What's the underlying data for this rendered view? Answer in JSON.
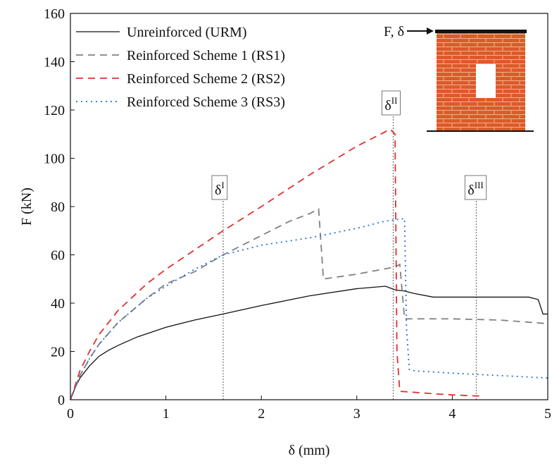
{
  "chart_data": {
    "type": "line",
    "xlabel": "δ (mm)",
    "ylabel": "F (kN)",
    "xlim": [
      0,
      5
    ],
    "xticks": [
      0,
      1,
      2,
      3,
      4,
      5
    ],
    "ylim": [
      0,
      160
    ],
    "yticks": [
      0,
      20,
      40,
      60,
      80,
      100,
      120,
      140,
      160
    ],
    "legend": "upper left",
    "series": [
      {
        "name": "Unreinforced (URM)",
        "color": "#111111",
        "dash": "solid",
        "x": [
          0,
          0.05,
          0.1,
          0.2,
          0.3,
          0.4,
          0.5,
          0.7,
          1,
          1.3,
          1.6,
          2,
          2.5,
          3,
          3.3,
          3.4,
          3.5,
          3.6,
          3.8,
          4,
          4.5,
          4.8,
          4.9,
          4.95,
          5
        ],
        "values": [
          0,
          5,
          9,
          14,
          18,
          20.5,
          22.5,
          26,
          30,
          33,
          35.5,
          39,
          43,
          46,
          47,
          45.5,
          45,
          44,
          42.5,
          42.5,
          42.5,
          42.5,
          41.5,
          35.5,
          35.5
        ]
      },
      {
        "name": "Reinforced Scheme 1 (RS1)",
        "color": "#808080",
        "dash": "dashed",
        "x": [
          0,
          0.1,
          0.2,
          0.3,
          0.5,
          0.8,
          1,
          1.3,
          1.6,
          2,
          2.3,
          2.5,
          2.6,
          2.65,
          3,
          3.4,
          3.45,
          3.5,
          4,
          4.5,
          5
        ],
        "values": [
          0,
          10,
          17,
          23,
          32,
          42,
          48,
          53,
          60,
          68,
          74,
          77,
          79,
          50,
          52,
          55,
          56,
          33.5,
          33.5,
          33,
          31.5
        ]
      },
      {
        "name": "Reinforced Scheme 2 (RS2)",
        "color": "#e03030",
        "dash": "dashed",
        "x": [
          0,
          0.1,
          0.2,
          0.3,
          0.5,
          0.8,
          1,
          1.3,
          1.6,
          2,
          2.5,
          3,
          3.35,
          3.4,
          3.42,
          3.45,
          3.8,
          4,
          4.3
        ],
        "values": [
          0,
          12,
          20,
          27,
          37,
          48,
          54,
          62,
          70,
          80,
          93,
          105,
          112,
          110,
          20,
          3.5,
          2.5,
          2,
          1.5
        ]
      },
      {
        "name": "Reinforced Scheme 3 (RS3)",
        "color": "#2a6fd6",
        "dash": "dotted",
        "x": [
          0,
          0.1,
          0.2,
          0.3,
          0.5,
          0.8,
          1,
          1.3,
          1.6,
          2,
          2.5,
          3,
          3.3,
          3.5,
          3.52,
          3.55,
          3.6,
          4,
          4.5,
          5
        ],
        "values": [
          0,
          10,
          17,
          23,
          32,
          42,
          47,
          54,
          60,
          64,
          67,
          71,
          74,
          75,
          30,
          12.5,
          12,
          11,
          10,
          9
        ]
      }
    ],
    "annotations": [
      {
        "text": "δ",
        "sup": "I",
        "x": 1.6
      },
      {
        "text": "δ",
        "sup": "II",
        "x": 3.38
      },
      {
        "text": "δ",
        "sup": "III",
        "x": 4.25
      }
    ],
    "inset_label": "F, δ"
  }
}
